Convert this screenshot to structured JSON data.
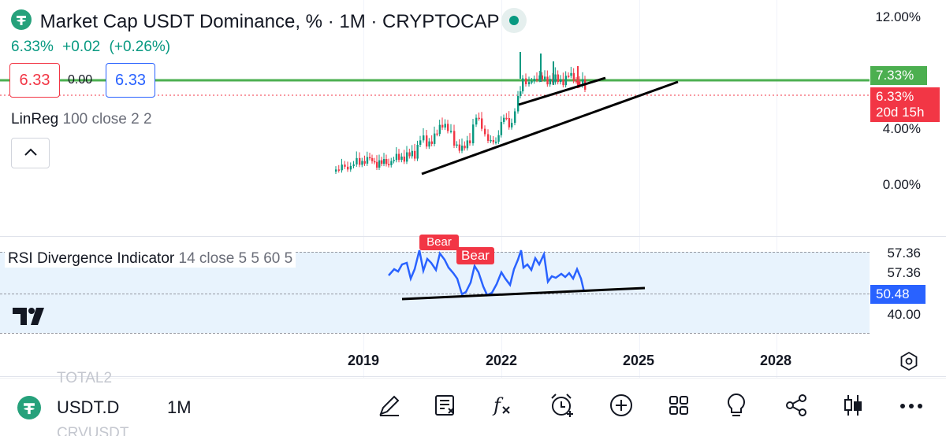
{
  "header": {
    "title": "Market Cap USDT Dominance, % · 1M · CRYPTOCAP",
    "change_value": "6.33%",
    "change_abs": "+0.02",
    "change_pct": "(+0.26%)"
  },
  "trade": {
    "sell_price": "6.33",
    "spread": "0.00",
    "buy_price": "6.33"
  },
  "indicators": {
    "linreg_name": "LinReg",
    "linreg_params": "100 close 2 2",
    "rsi_name": "RSI Divergence Indicator",
    "rsi_params": "14 close 5 5 60 5",
    "bear_label_1": "Bear",
    "bear_label_2": "Bear"
  },
  "price_axis": {
    "labels": [
      "12.00%",
      "4.00%",
      "0.00%"
    ],
    "tag_green": "7.33%",
    "tag_red_price": "6.33%",
    "tag_red_countdown": "20d 15h"
  },
  "rsi_axis": {
    "labels": [
      "57.36",
      "57.36",
      "40.00"
    ],
    "tag_blue": "50.48"
  },
  "time_axis": {
    "labels": [
      "2019",
      "2022",
      "2025",
      "2028"
    ]
  },
  "bottom": {
    "symbol": "USDT.D",
    "timeframe": "1M",
    "ghost_above": "TOTAL2",
    "ghost_below": "CRVUSDT"
  },
  "colors": {
    "up": "#089981",
    "down": "#f23645",
    "rsi_line": "#2962ff",
    "linreg": "#4caf50",
    "tether": "#26a17b"
  },
  "icons": {
    "toolbar": [
      "draw-icon",
      "news-icon",
      "indicators-icon",
      "alert-icon",
      "add-icon",
      "layouts-icon",
      "ideas-icon",
      "share-icon",
      "chart-type-icon",
      "more-icon"
    ]
  }
}
